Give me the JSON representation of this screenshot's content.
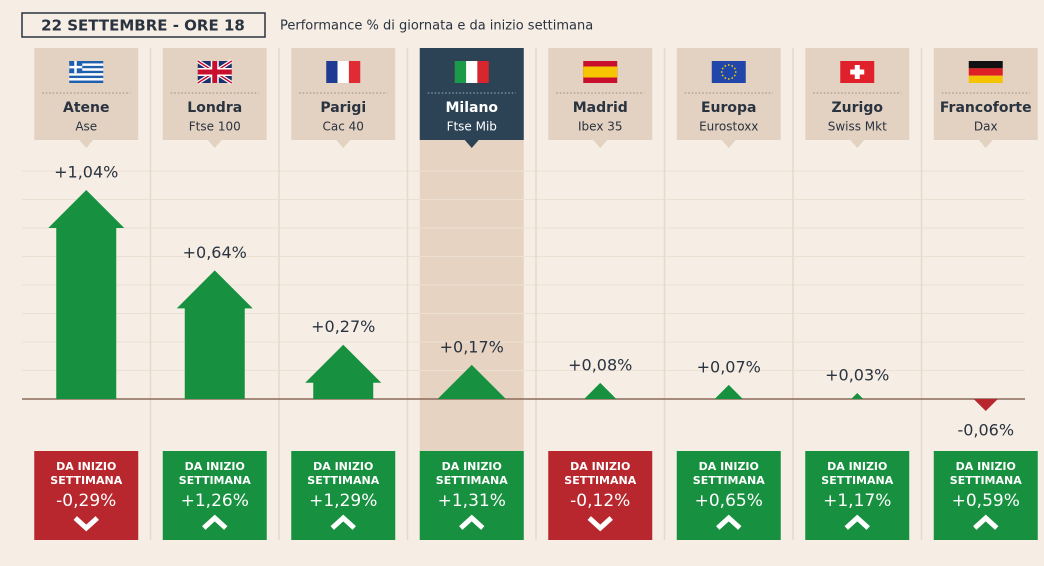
{
  "chart_data": {
    "type": "bar",
    "title": "22 SETTEMBRE - ORE 18",
    "subtitle": "Performance % di giornata e da inizio settimana",
    "categories": [
      "Atene",
      "Londra",
      "Parigi",
      "Milano",
      "Madrid",
      "Europa",
      "Zurigo",
      "Francoforte"
    ],
    "subcategories": [
      "Ase",
      "Ftse 100",
      "Cac 40",
      "Ftse Mib",
      "Ibex 35",
      "Eurostoxx",
      "Swiss Mkt",
      "Dax"
    ],
    "values": [
      1.04,
      0.64,
      0.27,
      0.17,
      0.08,
      0.07,
      0.03,
      -0.06
    ],
    "value_labels": [
      "+1,04%",
      "+0,64%",
      "+0,27%",
      "+0,17%",
      "+0,08%",
      "+0,07%",
      "+0,03%",
      "-0,06%"
    ],
    "week_label": [
      "DA INIZIO",
      "SETTIMANA"
    ],
    "week_values": [
      -0.29,
      1.26,
      1.29,
      1.31,
      -0.12,
      0.65,
      1.17,
      0.59
    ],
    "week_value_labels": [
      "-0,29%",
      "+1,26%",
      "+1,29%",
      "+1,31%",
      "-0,12%",
      "+0,65%",
      "+1,17%",
      "+0,59%"
    ],
    "up_color": "#17913f",
    "down_color": "#b8272d",
    "highlight": 3
  }
}
